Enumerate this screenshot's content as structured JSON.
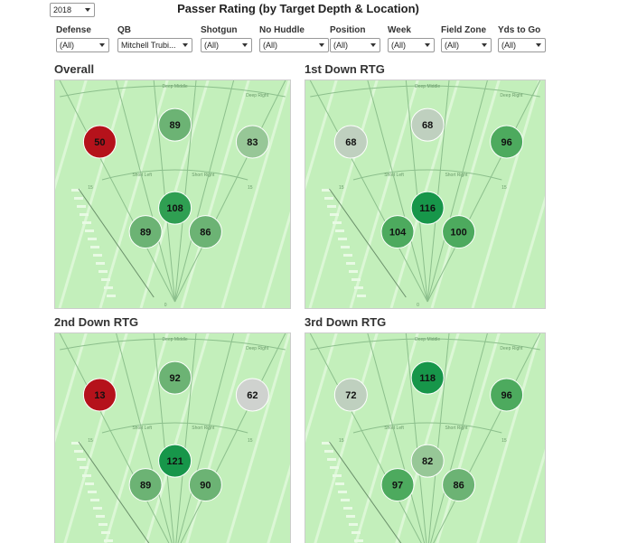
{
  "header": {
    "year": "2018",
    "title": "Passer Rating (by Target Depth & Location)"
  },
  "filters": [
    {
      "label": "Defense",
      "value": "(All)"
    },
    {
      "label": "QB",
      "value": "Mitchell Trubi..."
    },
    {
      "label": "Shotgun",
      "value": "(All)"
    },
    {
      "label": "No Huddle",
      "value": "(All)"
    },
    {
      "label": "Position",
      "value": "(All)"
    },
    {
      "label": "Week",
      "value": "(All)"
    },
    {
      "label": "Field Zone",
      "value": "(All)"
    },
    {
      "label": "Yds to Go",
      "value": "(All)"
    }
  ],
  "field_labels": [
    "Deep Middle",
    "Deep Right",
    "Short Left",
    "Short Right",
    "15",
    "15",
    "0"
  ],
  "panels": [
    {
      "title": "Overall",
      "zones": [
        50,
        89,
        83,
        108,
        89,
        86
      ]
    },
    {
      "title": "1st Down RTG",
      "zones": [
        68,
        68,
        96,
        116,
        104,
        100
      ]
    },
    {
      "title": "2nd Down RTG",
      "zones": [
        13,
        92,
        62,
        121,
        89,
        90
      ]
    },
    {
      "title": "3rd Down RTG",
      "zones": [
        72,
        118,
        96,
        82,
        97,
        86
      ]
    }
  ]
}
